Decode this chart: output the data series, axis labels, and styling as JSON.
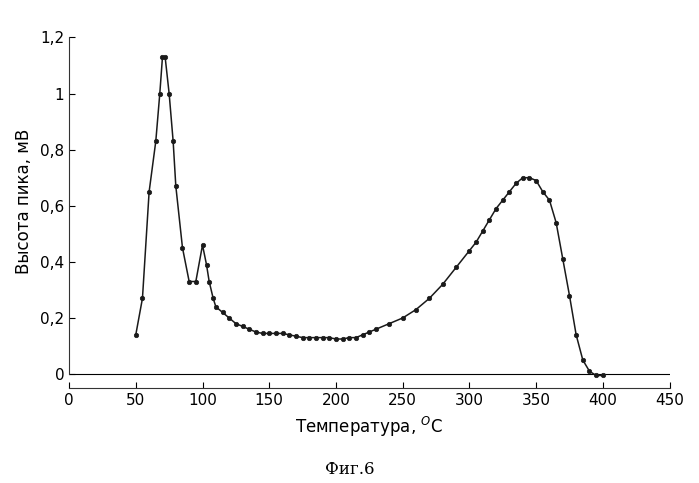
{
  "x": [
    50,
    55,
    60,
    65,
    68,
    70,
    72,
    75,
    78,
    80,
    85,
    90,
    95,
    100,
    103,
    105,
    108,
    110,
    115,
    120,
    125,
    130,
    135,
    140,
    145,
    150,
    155,
    160,
    165,
    170,
    175,
    180,
    185,
    190,
    195,
    200,
    205,
    210,
    215,
    220,
    225,
    230,
    240,
    250,
    260,
    270,
    280,
    290,
    300,
    305,
    310,
    315,
    320,
    325,
    330,
    335,
    340,
    345,
    350,
    355,
    360,
    365,
    370,
    375,
    380,
    385,
    390,
    395,
    400
  ],
  "y": [
    0.14,
    0.27,
    0.65,
    0.83,
    1.0,
    1.13,
    1.13,
    1.0,
    0.83,
    0.67,
    0.45,
    0.33,
    0.33,
    0.46,
    0.39,
    0.33,
    0.27,
    0.24,
    0.22,
    0.2,
    0.18,
    0.17,
    0.16,
    0.15,
    0.145,
    0.145,
    0.145,
    0.145,
    0.14,
    0.135,
    0.13,
    0.13,
    0.13,
    0.13,
    0.13,
    0.125,
    0.125,
    0.13,
    0.13,
    0.14,
    0.15,
    0.16,
    0.18,
    0.2,
    0.23,
    0.27,
    0.32,
    0.38,
    0.44,
    0.47,
    0.51,
    0.55,
    0.59,
    0.62,
    0.65,
    0.68,
    0.7,
    0.7,
    0.69,
    0.65,
    0.62,
    0.54,
    0.41,
    0.28,
    0.14,
    0.05,
    0.01,
    -0.005,
    -0.005
  ],
  "xlabel": "Температура, ${}^{O}$C",
  "ylabel": "Высота пика, мВ",
  "caption": "Фиг.6",
  "xlim": [
    0,
    450
  ],
  "ylim": [
    -0.05,
    1.28
  ],
  "xticks": [
    0,
    50,
    100,
    150,
    200,
    250,
    300,
    350,
    400,
    450
  ],
  "xtick_labels": [
    "0",
    "50",
    "100",
    "150",
    "200",
    "250",
    "300",
    "350",
    "400",
    "450"
  ],
  "yticks": [
    0,
    0.2,
    0.4,
    0.6,
    0.8,
    1.0,
    1.2
  ],
  "ytick_labels": [
    "0",
    "0,2",
    "0,4",
    "0,6",
    "0,8",
    "1",
    "1,2"
  ],
  "line_color": "#1a1a1a",
  "marker": "o",
  "markersize": 3.2,
  "background_color": "#ffffff",
  "fig_background": "#ffffff"
}
